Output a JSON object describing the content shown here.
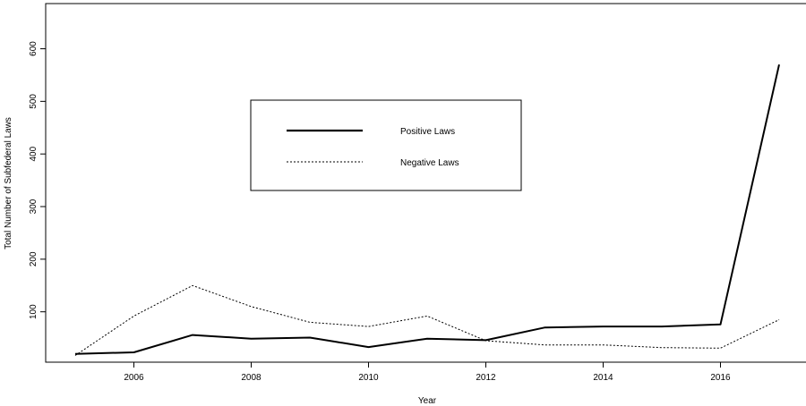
{
  "chart_data": {
    "type": "line",
    "title": "",
    "xlabel": "Year",
    "ylabel": "Total Number of Subfederal Laws",
    "xlim": [
      2005,
      2017
    ],
    "ylim": [
      10,
      600
    ],
    "x_ticks": [
      "2006",
      "2008",
      "2010",
      "2012",
      "2014",
      "2016"
    ],
    "y_ticks": [
      "100",
      "200",
      "300",
      "400",
      "500",
      "600"
    ],
    "grid": false,
    "legend_position": "upper-center",
    "series": [
      {
        "name": "Positive Laws",
        "style": "solid",
        "color": "#000000",
        "x": [
          2005,
          2006,
          2007,
          2008,
          2009,
          2010,
          2011,
          2012,
          2013,
          2014,
          2015,
          2016,
          2017
        ],
        "y": [
          20,
          23,
          56,
          49,
          51,
          33,
          49,
          46,
          70,
          72,
          72,
          76,
          570
        ]
      },
      {
        "name": "Negative Laws",
        "style": "dotted",
        "color": "#000000",
        "x": [
          2005,
          2006,
          2007,
          2008,
          2009,
          2010,
          2011,
          2012,
          2013,
          2014,
          2015,
          2016,
          2017
        ],
        "y": [
          17,
          92,
          150,
          110,
          80,
          72,
          92,
          45,
          37,
          37,
          32,
          31,
          85
        ]
      }
    ]
  }
}
